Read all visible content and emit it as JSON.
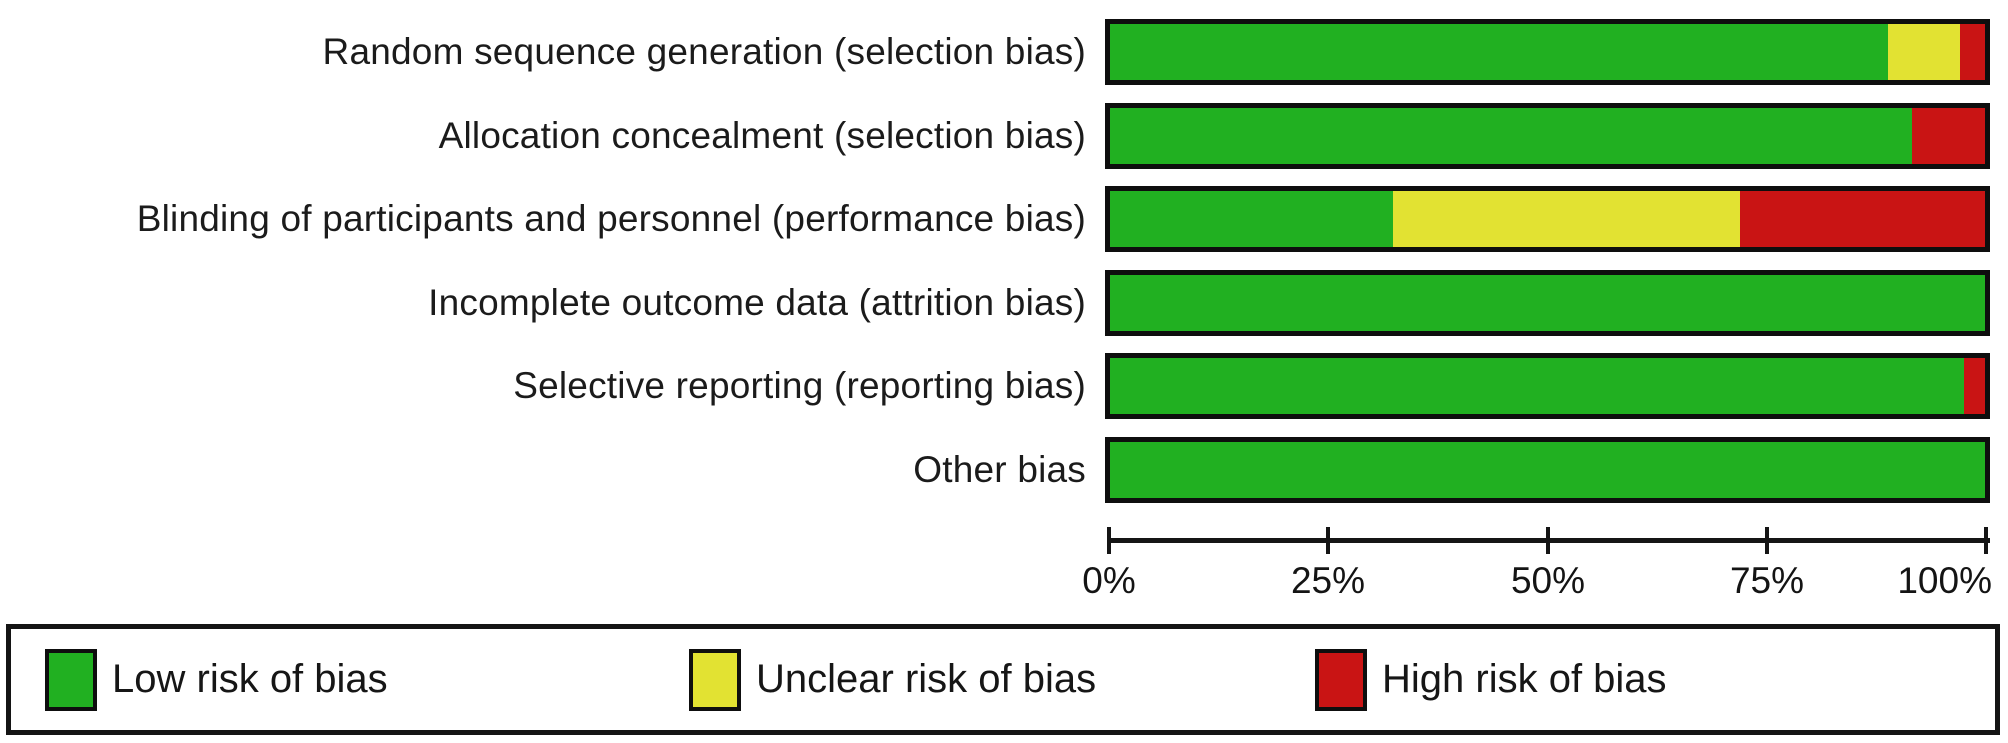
{
  "chart_data": {
    "type": "bar",
    "orientation": "horizontal",
    "stacked": true,
    "title": "",
    "xlabel": "",
    "ylabel": "",
    "xlim": [
      0,
      100
    ],
    "grid": false,
    "legend_position": "bottom",
    "categories": [
      "Random sequence generation (selection bias)",
      "Allocation concealment (selection bias)",
      "Blinding of participants and personnel (performance bias)",
      "Incomplete outcome data (attrition bias)",
      "Selective reporting (reporting bias)",
      "Other bias"
    ],
    "series": [
      {
        "name": "Low risk of bias",
        "color": "#21B021",
        "values": [
          88.9,
          91.6,
          32.3,
          100,
          97.6,
          100
        ]
      },
      {
        "name": "Unclear risk of bias",
        "color": "#E2E232",
        "values": [
          8.2,
          0,
          39.7,
          0,
          0,
          0
        ]
      },
      {
        "name": "High risk of bias",
        "color": "#C91414",
        "values": [
          2.9,
          8.4,
          28.0,
          0,
          2.4,
          0
        ]
      }
    ],
    "x_ticks": [
      "0%",
      "25%",
      "50%",
      "75%",
      "100%"
    ]
  },
  "legend": {
    "items": [
      {
        "label": "Low risk of bias",
        "color": "#21B021"
      },
      {
        "label": "Unclear risk of bias",
        "color": "#E2E232"
      },
      {
        "label": "High risk of bias",
        "color": "#C91414"
      }
    ]
  },
  "colors": {
    "low_risk": "#21B021",
    "unclear_risk": "#E2E232",
    "high_risk": "#C91414",
    "axis": "#151515",
    "border": "#0e0e0e",
    "background": "#ffffff"
  }
}
